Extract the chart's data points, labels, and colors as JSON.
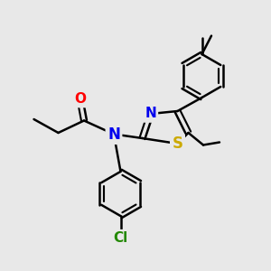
{
  "background_color": "#e8e8e8",
  "bond_color": "#000000",
  "bond_width": 1.8,
  "atom_colors": {
    "N": "#0000ee",
    "O": "#ff0000",
    "S": "#ccaa00",
    "Cl": "#228800",
    "C": "#000000"
  },
  "font_size_atom": 11,
  "figsize": [
    3.0,
    3.0
  ],
  "dpi": 100
}
